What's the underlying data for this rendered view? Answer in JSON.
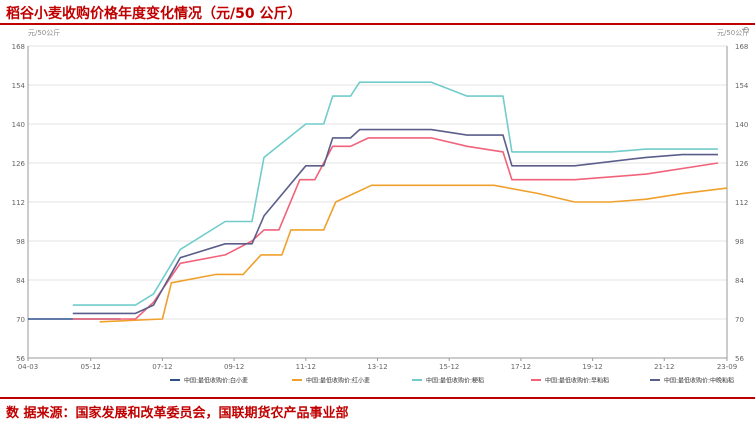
{
  "title": "稻谷小麦收购价格年度变化情况（元/50 公斤）",
  "footer": "数 据来源：国家发展和改革委员会，国联期货农产品事业部",
  "colors": {
    "accent": "#c00000",
    "series": [
      "#2e4f8a",
      "#f0a02c",
      "#72cccc",
      "#f0637a",
      "#5b5e8a"
    ]
  },
  "chart_data": {
    "type": "line",
    "ylabel_left": "元/50公斤",
    "ylabel_right": "元/50公斤",
    "ylim": [
      56,
      168
    ],
    "yticks": [
      56,
      70,
      84,
      98,
      112,
      126,
      140,
      154,
      168
    ],
    "xlim": [
      "2004-03",
      "2023-09"
    ],
    "xticks": [
      "04-03",
      "05-12",
      "07-12",
      "09-12",
      "11-12",
      "13-12",
      "15-12",
      "17-12",
      "19-12",
      "21-12",
      "23-09"
    ],
    "grid": "horizontal",
    "legend_position": "bottom",
    "series": [
      {
        "name": "中国:最低收购价:白小麦",
        "points": [
          [
            "2004-03",
            70
          ],
          [
            "2006-10",
            70
          ]
        ]
      },
      {
        "name": "中国:最低收购价:红小麦",
        "points": [
          [
            "2006-03",
            69
          ],
          [
            "2007-12",
            70
          ],
          [
            "2008-03",
            83
          ],
          [
            "2009-06",
            86
          ],
          [
            "2010-03",
            86
          ],
          [
            "2010-09",
            93
          ],
          [
            "2011-04",
            93
          ],
          [
            "2011-07",
            102
          ],
          [
            "2012-06",
            102
          ],
          [
            "2012-10",
            112
          ],
          [
            "2013-10",
            118
          ],
          [
            "2017-03",
            118
          ],
          [
            "2018-06",
            115
          ],
          [
            "2019-06",
            112
          ],
          [
            "2020-06",
            112
          ],
          [
            "2021-06",
            113
          ],
          [
            "2022-06",
            115
          ],
          [
            "2023-09",
            117
          ]
        ]
      },
      {
        "name": "中国:最低收购价:粳稻",
        "points": [
          [
            "2005-06",
            75
          ],
          [
            "2007-03",
            75
          ],
          [
            "2007-09",
            79
          ],
          [
            "2008-06",
            95
          ],
          [
            "2009-09",
            105
          ],
          [
            "2010-06",
            105
          ],
          [
            "2010-10",
            128
          ],
          [
            "2011-12",
            140
          ],
          [
            "2012-06",
            140
          ],
          [
            "2012-09",
            150
          ],
          [
            "2013-03",
            150
          ],
          [
            "2013-06",
            155
          ],
          [
            "2015-06",
            155
          ],
          [
            "2016-06",
            150
          ],
          [
            "2017-06",
            150
          ],
          [
            "2017-09",
            130
          ],
          [
            "2020-06",
            130
          ],
          [
            "2021-06",
            131
          ],
          [
            "2023-06",
            131
          ]
        ]
      },
      {
        "name": "中国:最低收购价:早籼稻",
        "points": [
          [
            "2005-06",
            70
          ],
          [
            "2007-03",
            70
          ],
          [
            "2007-09",
            76
          ],
          [
            "2008-06",
            90
          ],
          [
            "2009-09",
            93
          ],
          [
            "2010-06",
            98
          ],
          [
            "2010-10",
            102
          ],
          [
            "2011-03",
            102
          ],
          [
            "2011-10",
            120
          ],
          [
            "2012-03",
            120
          ],
          [
            "2012-09",
            132
          ],
          [
            "2013-03",
            132
          ],
          [
            "2013-09",
            135
          ],
          [
            "2015-06",
            135
          ],
          [
            "2016-06",
            132
          ],
          [
            "2017-06",
            130
          ],
          [
            "2017-09",
            120
          ],
          [
            "2019-06",
            120
          ],
          [
            "2021-06",
            122
          ],
          [
            "2023-06",
            126
          ]
        ]
      },
      {
        "name": "中国:最低收购价:中晚籼稻",
        "points": [
          [
            "2005-06",
            72
          ],
          [
            "2007-03",
            72
          ],
          [
            "2007-09",
            75
          ],
          [
            "2008-06",
            92
          ],
          [
            "2009-09",
            97
          ],
          [
            "2010-06",
            97
          ],
          [
            "2010-10",
            107
          ],
          [
            "2011-12",
            125
          ],
          [
            "2012-06",
            125
          ],
          [
            "2012-09",
            135
          ],
          [
            "2013-03",
            135
          ],
          [
            "2013-06",
            138
          ],
          [
            "2015-06",
            138
          ],
          [
            "2016-06",
            136
          ],
          [
            "2017-06",
            136
          ],
          [
            "2017-09",
            125
          ],
          [
            "2019-06",
            125
          ],
          [
            "2021-06",
            128
          ],
          [
            "2022-06",
            129
          ],
          [
            "2023-06",
            129
          ]
        ]
      }
    ]
  }
}
